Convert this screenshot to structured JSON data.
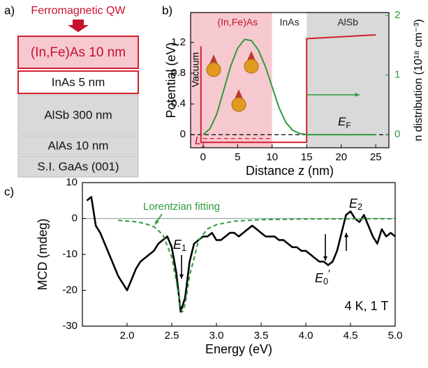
{
  "layer_stack": {
    "label": "a)",
    "title": "Ferromagnetic QW",
    "layers": [
      "(In,Fe)As 10 nm",
      "InAs 5 nm",
      "AlSb 300 nm",
      "AlAs 10 nm",
      "S.I. GaAs (001)"
    ]
  },
  "chart_data": [
    {
      "type": "line",
      "label": "b)",
      "xlabel": "Distance z (nm)",
      "ylabel": "Potential (eV)",
      "y2label": "n distribution (10¹⁸ cm⁻³)",
      "xlim": [
        -1.8,
        26.9
      ],
      "xticks": [
        0,
        5,
        10,
        15,
        20,
        25
      ],
      "ylim": [
        -0.17,
        1.59
      ],
      "yticks": [
        0,
        0.4,
        0.8,
        1.2
      ],
      "y2lim": [
        -0.22,
        2.05
      ],
      "y2ticks": [
        0,
        1,
        2
      ],
      "y2color": "#2e9a3a",
      "regions": [
        {
          "name": "(In,Fe)As",
          "from": -1.8,
          "to": 10,
          "color": "#f6c9d0",
          "text_color": "#c8102e"
        },
        {
          "name": "InAs",
          "from": 10,
          "to": 15,
          "color": "#ffffff",
          "text_color": "#222222"
        },
        {
          "name": "AlSb",
          "from": 15,
          "to": 26.9,
          "color": "#d9d9d9",
          "text_color": "#222222"
        }
      ],
      "fermi_level": 0,
      "level_energy": -0.05,
      "series": [
        {
          "color": "#d0202e",
          "x": [
            -0.3,
            -0.3,
            0,
            15,
            15,
            25
          ],
          "values": [
            1.15,
            -0.1,
            -0.1,
            -0.1,
            1.25,
            1.3
          ]
        },
        {
          "color": "#2e9a3a",
          "axis": "y2",
          "x": [
            0,
            1,
            2,
            3,
            4,
            5,
            6,
            7,
            8,
            9,
            10,
            11,
            12,
            13,
            14,
            15,
            20,
            25
          ],
          "values": [
            0,
            0.1,
            0.35,
            0.75,
            1.15,
            1.45,
            1.6,
            1.58,
            1.42,
            1.15,
            0.8,
            0.45,
            0.2,
            0.07,
            0.02,
            0,
            0,
            0
          ]
        }
      ],
      "annotations": {
        "vacuum": "Vacuum",
        "fermi": {
          "text": "E",
          "sub": "F"
        },
        "level": {
          "text": "L",
          "sub": "1"
        }
      }
    },
    {
      "type": "line",
      "label": "c)",
      "xlabel": "Energy (eV)",
      "ylabel": "MCD (mdeg)",
      "xlim": [
        1.5,
        5.0
      ],
      "xticks": [
        {
          "value": 2,
          "label": "2.0"
        },
        {
          "value": 2.5,
          "label": "2.5"
        },
        {
          "value": 3,
          "label": "3.0"
        },
        {
          "value": 3.5,
          "label": "3.5"
        },
        {
          "value": 4,
          "label": "4.0"
        },
        {
          "value": 4.5,
          "label": "4.5"
        },
        {
          "value": 5,
          "label": "5.0"
        }
      ],
      "ylim": [
        -30,
        10
      ],
      "yticks": [
        -30,
        -20,
        -10,
        0,
        10
      ],
      "zero_line": 0,
      "series": [
        {
          "color": "#000000",
          "x": [
            1.55,
            1.6,
            1.65,
            1.7,
            1.75,
            1.8,
            1.85,
            1.9,
            1.95,
            2.0,
            2.05,
            2.1,
            2.15,
            2.2,
            2.25,
            2.3,
            2.35,
            2.4,
            2.45,
            2.5,
            2.55,
            2.6,
            2.65,
            2.7,
            2.75,
            2.8,
            2.85,
            2.9,
            2.95,
            3.0,
            3.05,
            3.1,
            3.15,
            3.2,
            3.25,
            3.3,
            3.35,
            3.4,
            3.45,
            3.5,
            3.55,
            3.6,
            3.65,
            3.7,
            3.75,
            3.8,
            3.85,
            3.9,
            3.95,
            4.0,
            4.05,
            4.1,
            4.15,
            4.2,
            4.25,
            4.3,
            4.35,
            4.4,
            4.45,
            4.5,
            4.55,
            4.6,
            4.65,
            4.7,
            4.75,
            4.8,
            4.85,
            4.9,
            4.95,
            5.0
          ],
          "values": [
            5,
            6,
            -2,
            -4,
            -7,
            -10,
            -13,
            -16,
            -18,
            -20,
            -17,
            -14,
            -12,
            -11,
            -10,
            -9,
            -7,
            -6,
            -5,
            -8,
            -15,
            -26,
            -22,
            -12,
            -7,
            -6,
            -5,
            -5,
            -4,
            -6,
            -6,
            -5,
            -4,
            -4,
            -5,
            -4,
            -3,
            -2,
            -3,
            -4,
            -5,
            -5,
            -5,
            -6,
            -6,
            -7,
            -8,
            -8,
            -9,
            -9,
            -10,
            -11,
            -12,
            -12,
            -13,
            -12,
            -9,
            -4,
            1,
            2,
            0,
            -1,
            1,
            -2,
            -5,
            -7,
            -3,
            -5,
            -4,
            -5
          ]
        },
        {
          "name": "Lorentzian fitting",
          "color": "#2e9a3a",
          "dash": true,
          "x": [
            1.9,
            2.0,
            2.1,
            2.2,
            2.3,
            2.4,
            2.5,
            2.55,
            2.6,
            2.62,
            2.65,
            2.7,
            2.8,
            2.9,
            3.0,
            3.2,
            3.5,
            4.0,
            5.0
          ],
          "values": [
            -0.5,
            -0.7,
            -0.9,
            -1.4,
            -2.3,
            -4.5,
            -10.7,
            -17.4,
            -25.0,
            -26,
            -23.9,
            -15.9,
            -6.1,
            -2.9,
            -1.7,
            -0.75,
            -0.33,
            -0.14,
            -0.05
          ]
        }
      ],
      "annotations": {
        "condition": "4 K, 1 T",
        "e1": {
          "text": "E",
          "sub": "1"
        },
        "e2": {
          "text": "E",
          "sub": "2"
        },
        "e0": {
          "text": "E",
          "sub": "0",
          "sup": "′"
        }
      }
    }
  ]
}
